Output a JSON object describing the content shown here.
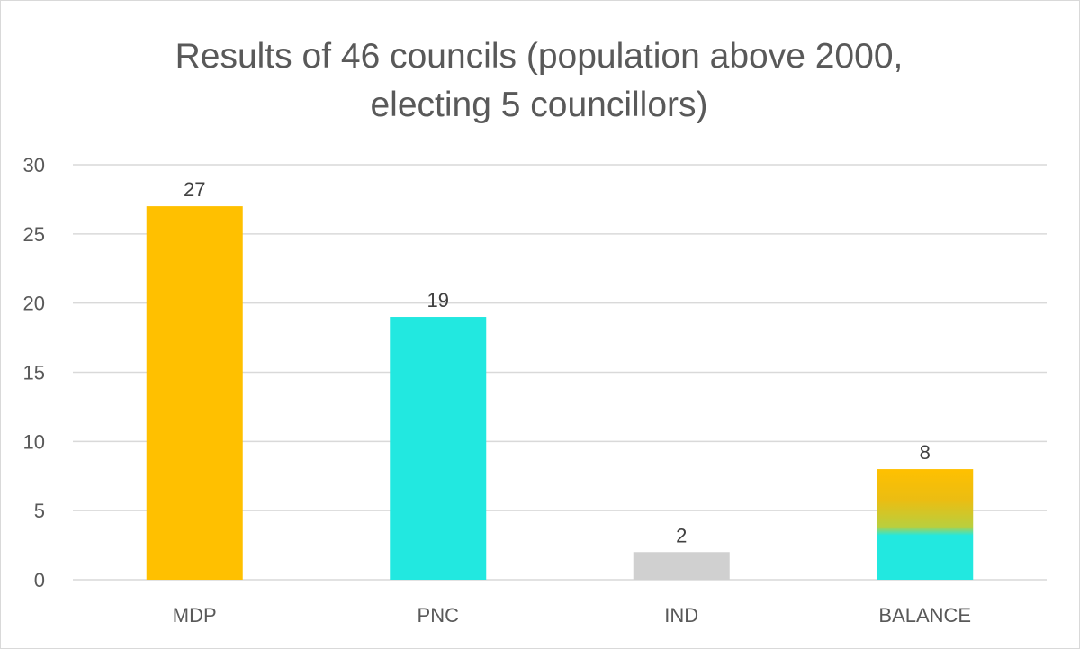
{
  "chart_data": {
    "type": "bar",
    "title_lines": [
      "Results of 46 councils (population above 2000,",
      "electing 5 councillors)"
    ],
    "categories": [
      "MDP",
      "PNC",
      "IND",
      "BALANCE"
    ],
    "values": [
      27,
      19,
      2,
      8
    ],
    "data_labels": [
      "27",
      "19",
      "2",
      "8"
    ],
    "ylim": [
      0,
      30
    ],
    "yticks": [
      0,
      5,
      10,
      15,
      20,
      25,
      30
    ],
    "ytick_labels": [
      "0",
      "5",
      "10",
      "15",
      "20",
      "25",
      "30"
    ],
    "grid": true,
    "xlabel": "",
    "ylabel": "",
    "colors": {
      "MDP": "#ffc000",
      "PNC": "#22e8e0",
      "IND": "#d0d0d0",
      "BALANCE_top": "#ffc000",
      "BALANCE_bottom": "#22e8e0"
    },
    "gridline_color": "#d9d9d9"
  }
}
